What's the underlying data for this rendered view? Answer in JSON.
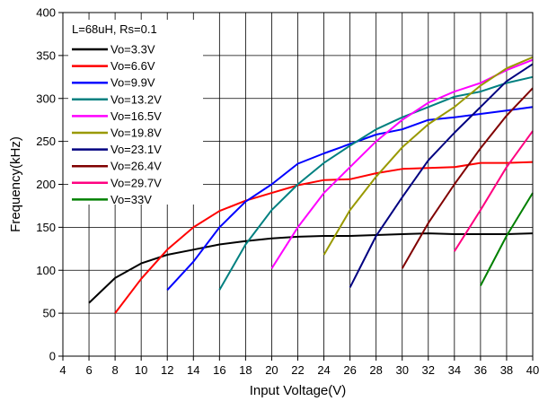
{
  "chart_data": {
    "type": "line",
    "title": "",
    "xlabel": "Input Voltage(V)",
    "ylabel": "Frequency(kHz)",
    "xlim": [
      4,
      40
    ],
    "ylim": [
      0,
      400
    ],
    "xticks": [
      4,
      6,
      8,
      10,
      12,
      14,
      16,
      18,
      20,
      22,
      24,
      26,
      28,
      30,
      32,
      34,
      36,
      38,
      40
    ],
    "yticks": [
      0,
      50,
      100,
      150,
      200,
      250,
      300,
      350,
      400
    ],
    "grid": true,
    "legend_position": "top-left",
    "legend_header": "L=68uH, Rs=0.1",
    "series": [
      {
        "name": "Vo=3.3V",
        "color": "#000000",
        "x": [
          6,
          8,
          10,
          12,
          14,
          16,
          18,
          20,
          22,
          24,
          26,
          28,
          30,
          32,
          34,
          36,
          38,
          40
        ],
        "y": [
          62,
          91,
          108,
          118,
          124,
          130,
          134,
          137,
          139,
          140,
          140,
          141,
          142,
          143,
          142,
          142,
          142,
          143
        ]
      },
      {
        "name": "Vo=6.6V",
        "color": "#ff0000",
        "x": [
          8,
          10,
          12,
          14,
          16,
          18,
          20,
          22,
          24,
          26,
          28,
          30,
          32,
          34,
          36,
          38,
          40
        ],
        "y": [
          50,
          90,
          124,
          150,
          169,
          181,
          190,
          199,
          205,
          206,
          213,
          218,
          219,
          220,
          225,
          225,
          226
        ]
      },
      {
        "name": "Vo=9.9V",
        "color": "#0000ff",
        "x": [
          12,
          14,
          16,
          18,
          20,
          22,
          24,
          26,
          28,
          30,
          32,
          34,
          36,
          38,
          40
        ],
        "y": [
          77,
          110,
          150,
          180,
          200,
          224,
          236,
          247,
          258,
          264,
          275,
          278,
          282,
          286,
          290
        ]
      },
      {
        "name": "Vo=13.2V",
        "color": "#008080",
        "x": [
          16,
          18,
          20,
          22,
          24,
          26,
          28,
          30,
          32,
          34,
          36,
          38,
          40
        ],
        "y": [
          77,
          130,
          170,
          200,
          225,
          245,
          264,
          278,
          290,
          302,
          308,
          318,
          325
        ]
      },
      {
        "name": "Vo=16.5V",
        "color": "#ff00ff",
        "x": [
          20,
          22,
          24,
          26,
          28,
          30,
          32,
          34,
          36,
          38,
          40
        ],
        "y": [
          102,
          150,
          190,
          220,
          250,
          275,
          295,
          308,
          318,
          333,
          345
        ]
      },
      {
        "name": "Vo=19.8V",
        "color": "#999900",
        "x": [
          24,
          26,
          28,
          30,
          32,
          34,
          36,
          38,
          40
        ],
        "y": [
          118,
          170,
          209,
          243,
          270,
          290,
          315,
          335,
          348
        ]
      },
      {
        "name": "Vo=23.1V",
        "color": "#000080",
        "x": [
          26,
          28,
          30,
          32,
          34,
          36,
          38,
          40
        ],
        "y": [
          80,
          140,
          185,
          228,
          260,
          290,
          320,
          340
        ]
      },
      {
        "name": "Vo=26.4V",
        "color": "#800000",
        "x": [
          30,
          32,
          34,
          36,
          38,
          40
        ],
        "y": [
          102,
          155,
          200,
          242,
          280,
          312
        ]
      },
      {
        "name": "Vo=29.7V",
        "color": "#ff0080",
        "x": [
          34,
          36,
          38,
          40
        ],
        "y": [
          122,
          170,
          220,
          262
        ]
      },
      {
        "name": "Vo=33V",
        "color": "#008000",
        "x": [
          36,
          38,
          40
        ],
        "y": [
          82,
          140,
          190
        ]
      }
    ]
  }
}
